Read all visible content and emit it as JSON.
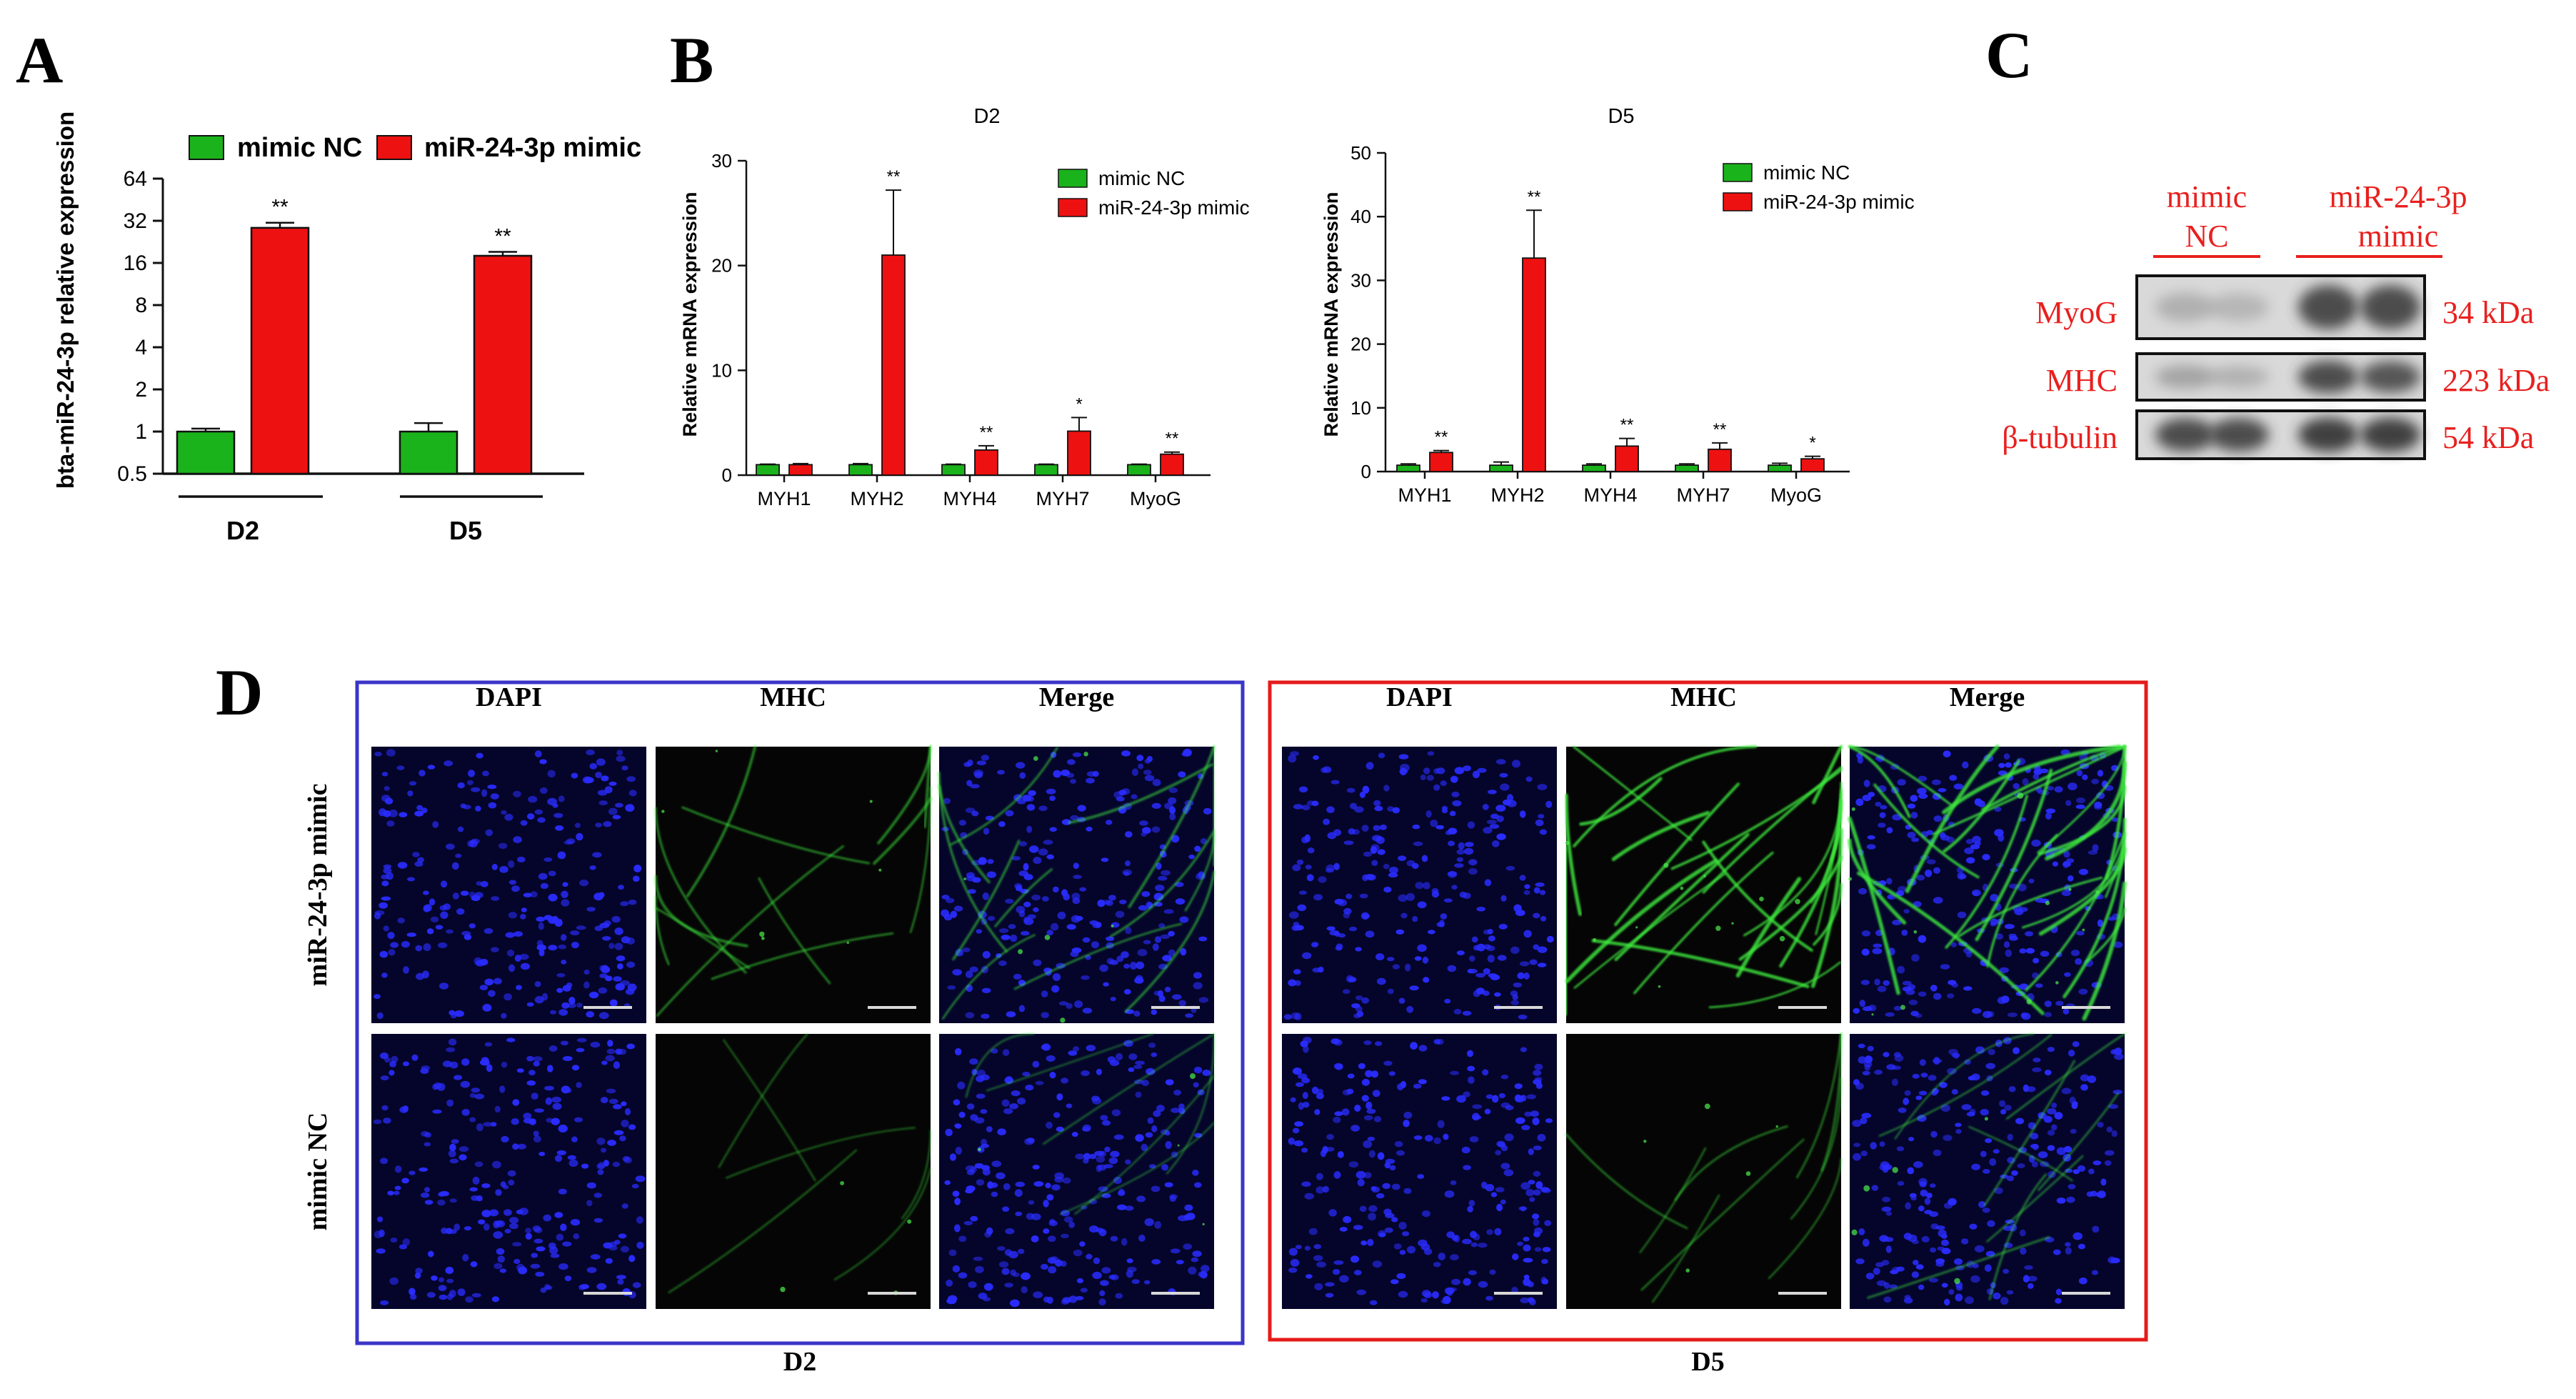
{
  "panels": {
    "A": {
      "letter": "A"
    },
    "B": {
      "letter": "B"
    },
    "C": {
      "letter": "C"
    },
    "D": {
      "letter": "D"
    }
  },
  "colors": {
    "nc": "#1bb31b",
    "mimic": "#ee1111",
    "western_label": "#e8201e",
    "d2_frame": "#3b35c8",
    "d5_frame": "#e51b1b"
  },
  "chart_data": [
    {
      "type": "bar",
      "panel": "A",
      "ylabel": "bta-miR-24-3p relative expression",
      "ylim": [
        0.5,
        64
      ],
      "yscale": "log2",
      "yticks": [
        "64",
        "32",
        "16",
        "8",
        "4",
        "2",
        "1",
        "0.5"
      ],
      "categories": [
        "D2",
        "D5"
      ],
      "series": [
        {
          "name": "mimic NC",
          "values": [
            1.0,
            1.0
          ],
          "errors": [
            0.05,
            0.15
          ]
        },
        {
          "name": "miR-24-3p mimic",
          "values": [
            28.5,
            18.0
          ],
          "errors": [
            2.5,
            1.2
          ]
        }
      ],
      "significance": [
        "**",
        "**"
      ],
      "legend": "top"
    },
    {
      "type": "bar",
      "panel": "B",
      "title": "D2",
      "ylabel": "Relative mRNA expression",
      "ylim": [
        0,
        30
      ],
      "yticks": [
        "0",
        "10",
        "20",
        "30"
      ],
      "categories": [
        "MYH1",
        "MYH2",
        "MYH4",
        "MYH7",
        "MyoG"
      ],
      "series": [
        {
          "name": "mimic NC",
          "values": [
            1.0,
            1.0,
            1.0,
            1.0,
            1.0
          ],
          "errors": [
            0.05,
            0.1,
            0.05,
            0.05,
            0.05
          ]
        },
        {
          "name": "miR-24-3p mimic",
          "values": [
            1.0,
            21.0,
            2.4,
            4.2,
            2.0
          ],
          "errors": [
            0.1,
            6.2,
            0.4,
            1.3,
            0.2
          ]
        }
      ],
      "significance": [
        "",
        "**",
        "**",
        "*",
        "**"
      ],
      "legend": "top-right"
    },
    {
      "type": "bar",
      "panel": "B",
      "title": "D5",
      "ylabel": "Relative mRNA expression",
      "ylim": [
        0,
        50
      ],
      "yticks": [
        "0",
        "10",
        "20",
        "30",
        "40",
        "50"
      ],
      "categories": [
        "MYH1",
        "MYH2",
        "MYH4",
        "MYH7",
        "MyoG"
      ],
      "series": [
        {
          "name": "mimic NC",
          "values": [
            1.0,
            1.0,
            1.0,
            1.0,
            1.0
          ],
          "errors": [
            0.2,
            0.5,
            0.2,
            0.2,
            0.3
          ]
        },
        {
          "name": "miR-24-3p mimic",
          "values": [
            3.0,
            33.5,
            4.0,
            3.5,
            2.0
          ],
          "errors": [
            0.3,
            7.5,
            1.2,
            1.0,
            0.4
          ]
        }
      ],
      "significance": [
        "**",
        "**",
        "**",
        "**",
        "*"
      ],
      "legend": "top-right"
    }
  ],
  "western": {
    "groups": [
      "mimic NC",
      "miR-24-3p mimic"
    ],
    "group_lines": [
      [
        "mimic",
        "NC"
      ],
      [
        "miR-24-3p",
        "mimic"
      ]
    ],
    "rows": [
      {
        "protein": "MyoG",
        "kda": "34 kDa",
        "intensity": [
          0.25,
          0.2,
          0.85,
          0.85
        ]
      },
      {
        "protein": "MHC",
        "kda": "223 kDa",
        "intensity": [
          0.35,
          0.25,
          0.85,
          0.8
        ]
      },
      {
        "protein": "β-tubulin",
        "kda": "54 kDa",
        "intensity": [
          0.85,
          0.85,
          0.9,
          0.9
        ]
      }
    ]
  },
  "immuno": {
    "columns": [
      "DAPI",
      "MHC",
      "Merge"
    ],
    "rows": [
      "miR-24-3p mimic",
      "mimic NC"
    ],
    "groups": [
      {
        "label": "D2",
        "mhc_signal": [
          0.35,
          0.08
        ]
      },
      {
        "label": "D5",
        "mhc_signal": [
          0.85,
          0.2
        ]
      }
    ]
  }
}
